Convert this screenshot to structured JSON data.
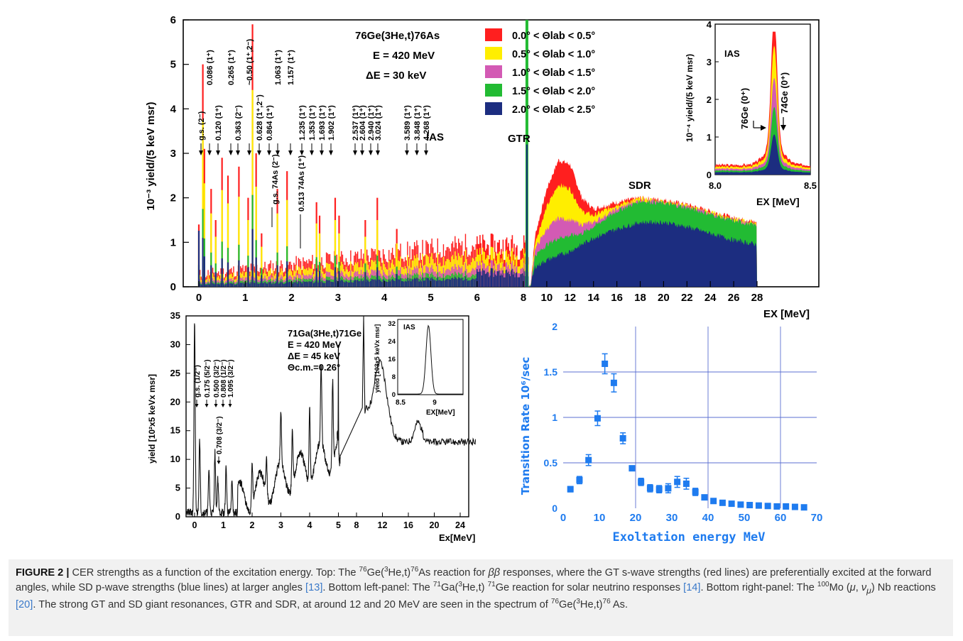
{
  "top": {
    "yaxis_label": "10⁻³ yield/(5 keV msr)",
    "xaxis_label": "EX [MeV]",
    "reaction": "76Ge(3He,t)76As",
    "energy": "E = 420 MeV",
    "resolution": "ΔE = 30 keV",
    "labels": {
      "ias": "IAS",
      "gtr": "GTR",
      "sdr": "SDR"
    },
    "levels": [
      "g.s. (2⁻)",
      "0.086 (1⁺)",
      "0.120 (1⁺)",
      "0.265 (1⁺)",
      "0.363 (2⁻)",
      "~0.50 (1⁺,2⁻)",
      "0.628 (1⁺,2⁻)",
      "0.864 (1⁺)",
      "1.063 (1⁺)",
      "1.157 (1⁺)",
      "1.235 (1⁺)",
      "1.353 (1⁺)",
      "1.693 (1⁺)",
      "1.902 (1⁺)",
      "2.537 (1⁺)",
      "2.604 (1⁺)",
      "2.940 (1⁺)",
      "3.024 (1⁺)",
      "3.589 (1⁺)",
      "3.848 (1⁺)",
      "4.268 (1⁺)"
    ],
    "impurities": [
      "g.s. 74As (2⁻)",
      "0.513 74As (1⁺)"
    ],
    "legend": [
      {
        "label": "0.0° < Θlab < 0.5°",
        "color": "#ff1f1f"
      },
      {
        "label": "0.5° < Θlab < 1.0°",
        "color": "#ffee00"
      },
      {
        "label": "1.0° < Θlab < 1.5°",
        "color": "#d35ab4"
      },
      {
        "label": "1.5° < Θlab < 2.0°",
        "color": "#22bb33"
      },
      {
        "label": "2.0° < Θlab < 2.5°",
        "color": "#1c2d80"
      }
    ],
    "inset": {
      "ylabel": "10⁻⁴ yield/(5 keV msr)",
      "xlabel": "EX [MeV]",
      "title": "IAS",
      "ge76": "76Ge (0⁺)",
      "ge74": "74Ge (0⁺)"
    }
  },
  "bottom_left": {
    "ylabel": "yield [10²x5 keVx msr]",
    "xlabel": "Ex[MeV]",
    "reaction": "71Ga(3He,t)71Ge",
    "energy": "E = 420 MeV",
    "resolution": "ΔE = 45 keV",
    "angle": "Θc.m.=0.26°",
    "levels": [
      "g.s. (1/2⁻)",
      "0.175 (5/2⁻)",
      "0.500 (3/2⁻)",
      "0.808 (1/2⁻)",
      "1.095 (3/2⁻)",
      "0.708 (3/2⁻)"
    ],
    "inset": {
      "title": "IAS",
      "ylabel": "yield [103x5 keVx msr]",
      "xlabel": "EX[MeV]"
    }
  },
  "bottom_right": {
    "ylabel": "Transition Rate 10⁶/sec",
    "xlabel": "Exoltation energy   MeV"
  },
  "caption": {
    "label": "FIGURE 2 |",
    "p1": "CER strengths as a function of the excitation energy. Top: The ",
    "p2": " reaction for ",
    "p3": " responses, where the GT s-wave strengths (red lines) are preferentially excited at the forward angles, while SD p-wave strengths (blue lines) at larger angles ",
    "ref1": "[13]",
    "p4": ". Bottom left-panel: The ",
    "p5": " reaction for solar neutrino responses ",
    "ref2": "[14]",
    "p6": ". Bottom right-panel: The ",
    "p7": " Nb reactions ",
    "ref3": "[20]",
    "p8": ". The strong GT and SD giant resonances, GTR and SDR, at around 12 and 20 MeV are seen in the spectrum of "
  },
  "chart_data": [
    {
      "type": "area",
      "title": "76Ge(3He,t)76As",
      "xlabel": "EX [MeV]",
      "ylabel": "10⁻³ yield/(5 keV msr)",
      "x_ticks": [
        0,
        1,
        2,
        3,
        4,
        5,
        6,
        8,
        10,
        12,
        14,
        16,
        18,
        20,
        22,
        24,
        26,
        28
      ],
      "y_ticks": [
        0,
        1,
        2,
        3,
        4,
        5,
        6
      ],
      "ylim": [
        0,
        6
      ],
      "series": [
        {
          "name": "0.0° < Θlab < 0.5°",
          "x": [
            9,
            10,
            11,
            12,
            13,
            14,
            16,
            18,
            20,
            22,
            24,
            26,
            28
          ],
          "y": [
            1.15,
            2.2,
            2.85,
            2.75,
            2.0,
            1.75,
            1.9,
            2.0,
            1.95,
            1.85,
            1.7,
            1.55,
            1.45
          ]
        },
        {
          "name": "0.5° < Θlab < 1.0°",
          "x": [
            9,
            10,
            11,
            12,
            13,
            14,
            16,
            18,
            20,
            22,
            24,
            26,
            28
          ],
          "y": [
            1.0,
            1.8,
            2.3,
            2.2,
            1.7,
            1.6,
            1.85,
            1.98,
            1.93,
            1.82,
            1.68,
            1.53,
            1.43
          ]
        },
        {
          "name": "1.0° < Θlab < 1.5°",
          "x": [
            9,
            10,
            11,
            12,
            13,
            14,
            16,
            18,
            20,
            22,
            24,
            26,
            28
          ],
          "y": [
            0.85,
            1.3,
            1.55,
            1.5,
            1.4,
            1.45,
            1.75,
            1.95,
            1.9,
            1.8,
            1.65,
            1.5,
            1.4
          ]
        },
        {
          "name": "1.5° < Θlab < 2.0°",
          "x": [
            9,
            10,
            11,
            12,
            13,
            14,
            16,
            18,
            20,
            22,
            24,
            26,
            28
          ],
          "y": [
            0.7,
            0.95,
            1.1,
            1.15,
            1.2,
            1.35,
            1.7,
            1.93,
            1.88,
            1.78,
            1.63,
            1.48,
            1.38
          ]
        },
        {
          "name": "2.0° < Θlab < 2.5°",
          "x": [
            9,
            10,
            11,
            12,
            13,
            14,
            16,
            18,
            20,
            22,
            24,
            26,
            28
          ],
          "y": [
            0.45,
            0.6,
            0.7,
            0.8,
            0.95,
            1.1,
            1.3,
            1.45,
            1.45,
            1.35,
            1.2,
            1.05,
            0.95
          ]
        }
      ]
    },
    {
      "type": "line",
      "title": "71Ga(3He,t)71Ge",
      "xlabel": "Ex[MeV]",
      "ylabel": "yield [10²x5 keVx msr]",
      "x_ticks": [
        0,
        1,
        2,
        3,
        4,
        5,
        8,
        12,
        16,
        20,
        24,
        28
      ],
      "y_ticks": [
        0,
        5,
        10,
        15,
        20,
        25,
        30,
        35
      ],
      "ylim": [
        0,
        35
      ],
      "x": [
        10,
        11,
        12,
        13,
        14,
        16,
        17,
        18,
        20,
        24,
        28
      ],
      "y": [
        19,
        24,
        28,
        22,
        17,
        15,
        16,
        17,
        14,
        13.5,
        13
      ]
    },
    {
      "type": "scatter",
      "xlabel": "Exoltation energy   MeV",
      "ylabel": "Transition Rate 10⁶/sec",
      "x_ticks": [
        0,
        10,
        20,
        30,
        40,
        50,
        60,
        70
      ],
      "y_ticks": [
        0,
        0.5,
        1,
        1.5,
        2
      ],
      "xlim": [
        0,
        70
      ],
      "ylim": [
        0,
        2
      ],
      "points": [
        {
          "x": 2,
          "y": 0.21,
          "err": 0.03
        },
        {
          "x": 4.5,
          "y": 0.31,
          "err": 0.04
        },
        {
          "x": 7,
          "y": 0.53,
          "err": 0.06
        },
        {
          "x": 9.5,
          "y": 0.99,
          "err": 0.08
        },
        {
          "x": 11.5,
          "y": 1.59,
          "err": 0.11
        },
        {
          "x": 14,
          "y": 1.38,
          "err": 0.1
        },
        {
          "x": 16.5,
          "y": 0.77,
          "err": 0.06
        },
        {
          "x": 19,
          "y": 0.44,
          "err": 0.0
        },
        {
          "x": 21.5,
          "y": 0.29,
          "err": 0.04
        },
        {
          "x": 24,
          "y": 0.22,
          "err": 0.04
        },
        {
          "x": 26.5,
          "y": 0.21,
          "err": 0.04
        },
        {
          "x": 29,
          "y": 0.22,
          "err": 0.05
        },
        {
          "x": 31.5,
          "y": 0.29,
          "err": 0.06
        },
        {
          "x": 34,
          "y": 0.27,
          "err": 0.06
        },
        {
          "x": 36.5,
          "y": 0.18,
          "err": 0.04
        },
        {
          "x": 39,
          "y": 0.12,
          "err": 0.02
        },
        {
          "x": 41.5,
          "y": 0.08,
          "err": 0.0
        },
        {
          "x": 44,
          "y": 0.06,
          "err": 0.0
        },
        {
          "x": 46.5,
          "y": 0.05,
          "err": 0.0
        },
        {
          "x": 49,
          "y": 0.04,
          "err": 0.0
        },
        {
          "x": 51.5,
          "y": 0.035,
          "err": 0.0
        },
        {
          "x": 54,
          "y": 0.03,
          "err": 0.0
        },
        {
          "x": 56.5,
          "y": 0.025,
          "err": 0.0
        },
        {
          "x": 59,
          "y": 0.02,
          "err": 0.0
        },
        {
          "x": 61.5,
          "y": 0.02,
          "err": 0.0
        },
        {
          "x": 64,
          "y": 0.015,
          "err": 0.0
        },
        {
          "x": 66.5,
          "y": 0.01,
          "err": 0.0
        }
      ]
    }
  ]
}
